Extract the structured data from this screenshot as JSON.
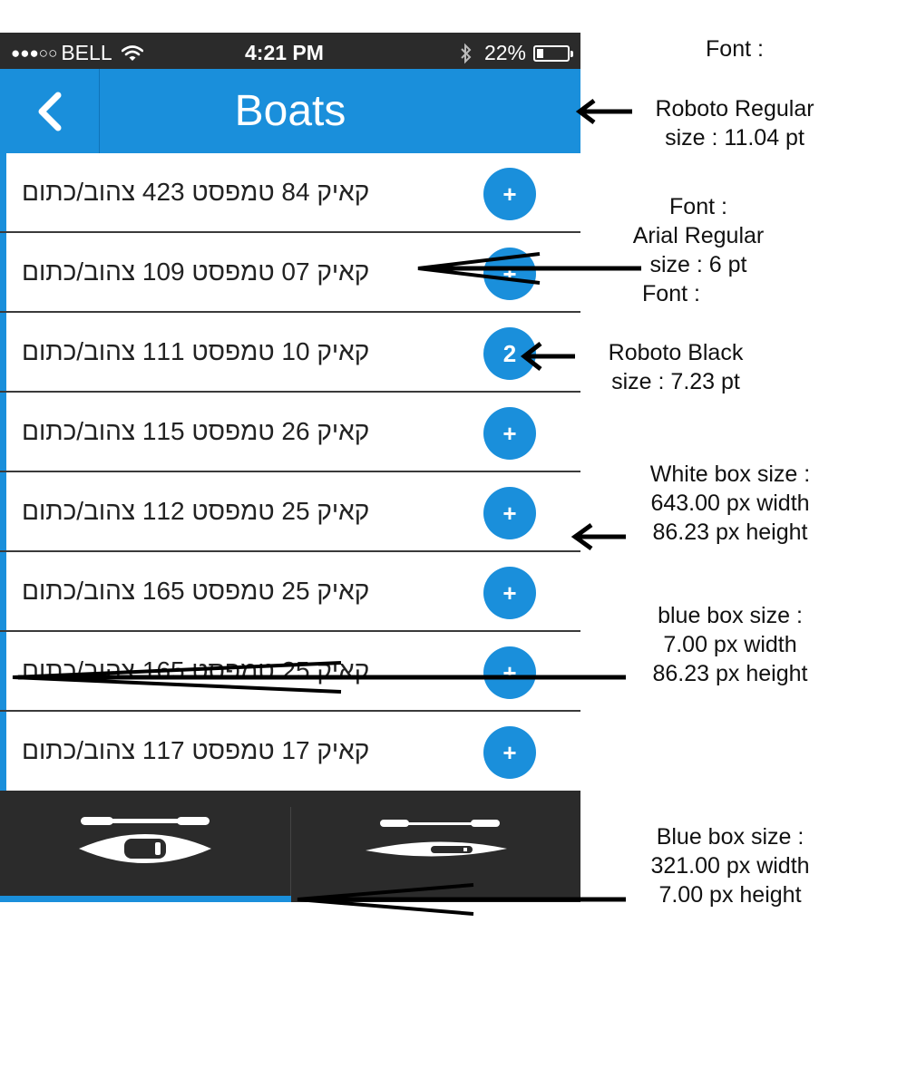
{
  "status_bar": {
    "carrier_dots": "●●●○○",
    "carrier": "BELL",
    "time": "4:21 PM",
    "battery": "22%",
    "battery_level": 0.22
  },
  "nav_bar": {
    "title": "Boats",
    "back_icon": "chevron-left-icon"
  },
  "boats": [
    {
      "label": "קאיק 84 טמפסט 423 צהוב/כתום",
      "action": "+"
    },
    {
      "label": "קאיק 07 טמפסט 109 צהוב/כתום",
      "action": "+"
    },
    {
      "label": "קאיק 10 טמפסט 111 צהוב/כתום",
      "action": "2"
    },
    {
      "label": "קאיק 26 טמפסט 115 צהוב/כתום",
      "action": "+"
    },
    {
      "label": "קאיק 25 טמפסט 112 צהוב/כתום",
      "action": "+"
    },
    {
      "label": "קאיק 25 טמפסט 165 צהוב/כתום",
      "action": "+"
    },
    {
      "label": "קאיק 25 טמפסט 165 צהוב/כתום",
      "action": "+"
    },
    {
      "label": "קאיק 17 טמפסט 117 צהוב/כתום",
      "action": "+"
    }
  ],
  "tabs": [
    {
      "icon": "kayak-top-view-icon",
      "selected": true
    },
    {
      "icon": "kayak-side-view-icon",
      "selected": false
    }
  ],
  "annotations": {
    "title_font": {
      "line1": "Font :",
      "line2": "Roboto Regular",
      "line3": "size : 11.04 pt"
    },
    "label_font": {
      "line1": "Font :",
      "line2": "Arial Regular",
      "line3": "size : 6 pt"
    },
    "badge_font": {
      "line1": "Font :",
      "line2": "Roboto Black",
      "line3": "size : 7.23 pt"
    },
    "white_box": {
      "line1": "White box size :",
      "line2": "643.00 px width",
      "line3": "86.23 px height"
    },
    "blue_box": {
      "line1": "blue box size :",
      "line2": "7.00 px width",
      "line3": "86.23 px height"
    },
    "tab_box": {
      "line1": "Blue box size :",
      "line2": "321.00 px width",
      "line3": "7.00 px height"
    }
  },
  "colors": {
    "accent_blue": "#1a8fdb",
    "dark_bar": "#2b2b2b"
  }
}
